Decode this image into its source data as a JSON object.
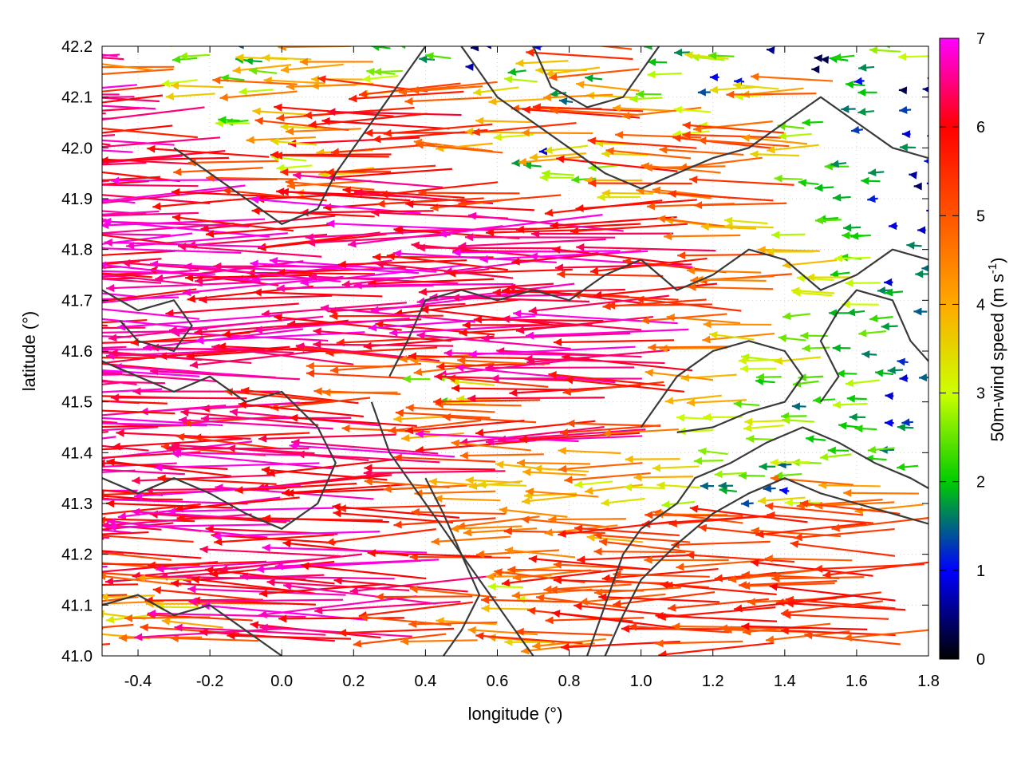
{
  "chart_data": {
    "type": "vector_field",
    "xlabel": "longitude (°)",
    "ylabel": "latitude (°)",
    "colorbar_label_main": "50m-wind speed (m s",
    "colorbar_label_sup": "-1",
    "colorbar_label_end": ")",
    "xlim": [
      -0.5,
      1.8
    ],
    "ylim": [
      41.0,
      42.2
    ],
    "x_ticks": [
      {
        "value": -0.4,
        "label": "-0.4"
      },
      {
        "value": -0.2,
        "label": "-0.2"
      },
      {
        "value": 0.0,
        "label": "0.0"
      },
      {
        "value": 0.2,
        "label": "0.2"
      },
      {
        "value": 0.4,
        "label": "0.4"
      },
      {
        "value": 0.6,
        "label": "0.6"
      },
      {
        "value": 0.8,
        "label": "0.8"
      },
      {
        "value": 1.0,
        "label": "1.0"
      },
      {
        "value": 1.2,
        "label": "1.2"
      },
      {
        "value": 1.4,
        "label": "1.4"
      },
      {
        "value": 1.6,
        "label": "1.6"
      },
      {
        "value": 1.8,
        "label": "1.8"
      }
    ],
    "y_ticks": [
      {
        "value": 41.0,
        "label": "41.0"
      },
      {
        "value": 41.1,
        "label": "41.1"
      },
      {
        "value": 41.2,
        "label": "41.2"
      },
      {
        "value": 41.3,
        "label": "41.3"
      },
      {
        "value": 41.4,
        "label": "41.4"
      },
      {
        "value": 41.5,
        "label": "41.5"
      },
      {
        "value": 41.6,
        "label": "41.6"
      },
      {
        "value": 41.7,
        "label": "41.7"
      },
      {
        "value": 41.8,
        "label": "41.8"
      },
      {
        "value": 41.9,
        "label": "41.9"
      },
      {
        "value": 42.0,
        "label": "42.0"
      },
      {
        "value": 42.1,
        "label": "42.1"
      },
      {
        "value": 42.2,
        "label": "42.2"
      }
    ],
    "colorbar": {
      "range": [
        0,
        7
      ],
      "ticks": [
        {
          "value": 0,
          "label": "0"
        },
        {
          "value": 1,
          "label": "1"
        },
        {
          "value": 2,
          "label": "2"
        },
        {
          "value": 3,
          "label": "3"
        },
        {
          "value": 4,
          "label": "4"
        },
        {
          "value": 5,
          "label": "5"
        },
        {
          "value": 6,
          "label": "6"
        },
        {
          "value": 7,
          "label": "7"
        }
      ],
      "stops": [
        {
          "value": 0,
          "color": "#000000"
        },
        {
          "value": 1,
          "color": "#0000ff"
        },
        {
          "value": 2,
          "color": "#00cc00"
        },
        {
          "value": 3,
          "color": "#ccff00"
        },
        {
          "value": 4,
          "color": "#ffaa00"
        },
        {
          "value": 5,
          "color": "#ff5500"
        },
        {
          "value": 6,
          "color": "#ff0000"
        },
        {
          "value": 7,
          "color": "#ff00ff"
        }
      ]
    },
    "contour_color": "#3a3a3a",
    "grid": true,
    "wind_field": {
      "description_note": "",
      "rows": [
        {
          "lat": 42.18,
          "speeds": [
            6.8,
            5.5,
            3.5,
            2.0,
            4.5,
            5.0,
            3.0,
            2.5,
            1.5,
            2.0,
            4.0,
            5.5,
            2.0,
            3.5,
            1.5,
            1.0,
            2.5,
            3.0
          ]
        },
        {
          "lat": 42.12,
          "speeds": [
            7.0,
            6.5,
            4.0,
            3.0,
            5.0,
            4.5,
            3.5,
            6.0,
            5.5,
            4.0,
            2.5,
            4.5,
            3.0,
            1.5,
            4.0,
            5.0,
            2.0,
            1.0
          ]
        },
        {
          "lat": 42.05,
          "speeds": [
            7.0,
            7.0,
            6.5,
            3.0,
            4.5,
            5.5,
            6.5,
            7.0,
            6.0,
            4.0,
            5.5,
            6.0,
            5.0,
            4.0,
            5.5,
            3.0,
            2.0,
            1.5
          ]
        },
        {
          "lat": 41.98,
          "speeds": [
            7.0,
            7.0,
            7.0,
            6.0,
            3.5,
            4.0,
            6.5,
            6.0,
            5.0,
            2.0,
            4.5,
            3.5,
            6.0,
            5.0,
            6.0,
            4.5,
            2.5,
            2.0
          ]
        },
        {
          "lat": 41.92,
          "speeds": [
            7.0,
            7.0,
            7.0,
            7.0,
            6.0,
            5.0,
            7.0,
            7.0,
            6.5,
            5.5,
            3.5,
            4.5,
            6.0,
            5.5,
            6.0,
            3.0,
            2.0,
            1.5
          ]
        },
        {
          "lat": 41.85,
          "speeds": [
            7.0,
            7.0,
            7.0,
            7.0,
            7.0,
            7.0,
            7.0,
            7.0,
            7.0,
            6.5,
            7.0,
            7.0,
            6.5,
            5.0,
            4.0,
            3.0,
            2.5,
            1.5
          ]
        },
        {
          "lat": 41.78,
          "speeds": [
            7.0,
            7.0,
            7.0,
            7.0,
            7.0,
            7.0,
            7.0,
            7.0,
            7.0,
            7.0,
            7.0,
            7.0,
            7.0,
            6.5,
            5.5,
            4.5,
            3.0,
            2.0
          ]
        },
        {
          "lat": 41.72,
          "speeds": [
            7.0,
            7.0,
            7.0,
            7.0,
            7.0,
            7.0,
            7.0,
            7.0,
            7.0,
            7.0,
            7.0,
            7.0,
            6.5,
            6.0,
            5.0,
            4.0,
            3.5,
            2.0
          ]
        },
        {
          "lat": 41.65,
          "speeds": [
            7.0,
            7.0,
            7.0,
            7.0,
            7.0,
            7.0,
            7.0,
            6.5,
            7.0,
            7.0,
            7.0,
            7.0,
            7.0,
            5.5,
            4.5,
            3.5,
            3.0,
            2.5
          ]
        },
        {
          "lat": 41.58,
          "speeds": [
            7.0,
            7.0,
            7.0,
            7.0,
            7.0,
            7.0,
            6.0,
            6.5,
            5.5,
            6.0,
            7.0,
            7.0,
            6.5,
            5.0,
            4.0,
            3.5,
            2.5,
            2.0
          ]
        },
        {
          "lat": 41.52,
          "speeds": [
            7.0,
            7.0,
            7.0,
            7.0,
            7.0,
            6.0,
            5.5,
            3.0,
            4.0,
            5.5,
            7.0,
            7.0,
            6.0,
            4.5,
            3.0,
            2.5,
            3.0,
            2.0
          ]
        },
        {
          "lat": 41.45,
          "speeds": [
            7.0,
            7.0,
            7.0,
            7.0,
            6.5,
            7.0,
            7.0,
            5.0,
            5.5,
            6.0,
            7.0,
            7.0,
            5.5,
            4.0,
            3.5,
            3.0,
            2.5,
            2.0
          ]
        },
        {
          "lat": 41.38,
          "speeds": [
            7.0,
            7.0,
            7.0,
            6.5,
            7.0,
            7.0,
            7.0,
            7.0,
            6.5,
            5.0,
            4.5,
            5.0,
            4.0,
            3.0,
            2.5,
            3.5,
            3.0,
            2.5
          ]
        },
        {
          "lat": 41.32,
          "speeds": [
            7.0,
            7.0,
            6.5,
            7.0,
            7.0,
            7.0,
            7.0,
            6.0,
            5.0,
            4.0,
            4.5,
            4.0,
            3.5,
            2.5,
            2.0,
            4.0,
            5.0,
            5.5
          ]
        },
        {
          "lat": 41.25,
          "speeds": [
            7.0,
            6.5,
            6.0,
            7.0,
            7.0,
            7.0,
            7.0,
            6.5,
            5.5,
            5.0,
            5.5,
            5.0,
            6.0,
            5.5,
            6.0,
            6.0,
            6.0,
            6.0
          ]
        },
        {
          "lat": 41.18,
          "speeds": [
            7.0,
            6.0,
            6.5,
            6.5,
            7.0,
            7.0,
            7.0,
            7.0,
            6.5,
            5.0,
            5.5,
            6.0,
            6.0,
            6.0,
            6.0,
            6.0,
            6.0,
            6.0
          ]
        },
        {
          "lat": 41.12,
          "speeds": [
            6.0,
            5.0,
            4.5,
            6.0,
            7.0,
            7.0,
            7.0,
            7.0,
            6.0,
            4.0,
            5.5,
            6.0,
            6.0,
            6.0,
            6.0,
            6.0,
            6.0,
            6.0
          ]
        },
        {
          "lat": 41.05,
          "speeds": [
            5.5,
            4.0,
            5.0,
            5.5,
            7.0,
            7.0,
            7.0,
            6.0,
            5.0,
            4.5,
            5.5,
            6.0,
            6.0,
            6.0,
            6.0,
            6.0,
            6.0,
            6.0
          ]
        }
      ],
      "longitudes": [
        -0.45,
        -0.32,
        -0.19,
        -0.06,
        0.07,
        0.2,
        0.33,
        0.46,
        0.59,
        0.72,
        0.85,
        0.98,
        1.11,
        1.24,
        1.37,
        1.5,
        1.63,
        1.76
      ]
    },
    "contours": [
      [
        [
          -0.5,
          41.58
        ],
        [
          -0.4,
          41.55
        ],
        [
          -0.3,
          41.52
        ],
        [
          -0.2,
          41.55
        ],
        [
          -0.1,
          41.5
        ],
        [
          0.0,
          41.52
        ],
        [
          0.1,
          41.45
        ],
        [
          0.15,
          41.38
        ],
        [
          0.1,
          41.3
        ],
        [
          0.0,
          41.25
        ],
        [
          -0.1,
          41.28
        ],
        [
          -0.2,
          41.32
        ],
        [
          -0.3,
          41.35
        ],
        [
          -0.4,
          41.32
        ],
        [
          -0.5,
          41.35
        ]
      ],
      [
        [
          -0.5,
          41.72
        ],
        [
          -0.4,
          41.68
        ],
        [
          -0.3,
          41.7
        ],
        [
          -0.25,
          41.65
        ],
        [
          -0.3,
          41.6
        ],
        [
          -0.4,
          41.62
        ],
        [
          -0.45,
          41.66
        ]
      ],
      [
        [
          0.3,
          41.55
        ],
        [
          0.35,
          41.62
        ],
        [
          0.4,
          41.7
        ],
        [
          0.5,
          41.72
        ],
        [
          0.6,
          41.7
        ],
        [
          0.7,
          41.72
        ],
        [
          0.8,
          41.7
        ],
        [
          0.9,
          41.75
        ],
        [
          1.0,
          41.78
        ],
        [
          1.1,
          41.72
        ],
        [
          1.2,
          41.75
        ],
        [
          1.3,
          41.8
        ],
        [
          1.4,
          41.78
        ],
        [
          1.5,
          41.72
        ],
        [
          1.6,
          41.75
        ],
        [
          1.7,
          41.8
        ],
        [
          1.8,
          41.78
        ]
      ],
      [
        [
          0.25,
          41.5
        ],
        [
          0.3,
          41.4
        ],
        [
          0.35,
          41.35
        ],
        [
          0.4,
          41.3
        ],
        [
          0.45,
          41.25
        ],
        [
          0.5,
          41.2
        ],
        [
          0.55,
          41.15
        ],
        [
          0.6,
          41.1
        ],
        [
          0.65,
          41.05
        ],
        [
          0.7,
          41.0
        ]
      ],
      [
        [
          0.85,
          41.0
        ],
        [
          0.9,
          41.1
        ],
        [
          0.95,
          41.2
        ],
        [
          1.0,
          41.25
        ],
        [
          1.1,
          41.3
        ],
        [
          1.15,
          41.35
        ],
        [
          1.25,
          41.38
        ],
        [
          1.35,
          41.42
        ],
        [
          1.45,
          41.45
        ],
        [
          1.55,
          41.42
        ],
        [
          1.65,
          41.38
        ],
        [
          1.75,
          41.35
        ],
        [
          1.8,
          41.33
        ]
      ],
      [
        [
          0.9,
          41.0
        ],
        [
          0.95,
          41.08
        ],
        [
          1.0,
          41.15
        ],
        [
          1.1,
          41.22
        ],
        [
          1.2,
          41.28
        ],
        [
          1.3,
          41.32
        ],
        [
          1.4,
          41.35
        ],
        [
          1.5,
          41.32
        ],
        [
          1.6,
          41.3
        ],
        [
          1.7,
          41.28
        ],
        [
          1.8,
          41.26
        ]
      ],
      [
        [
          1.5,
          41.5
        ],
        [
          1.55,
          41.55
        ],
        [
          1.5,
          41.62
        ],
        [
          1.55,
          41.68
        ],
        [
          1.6,
          41.72
        ],
        [
          1.7,
          41.7
        ],
        [
          1.75,
          41.62
        ],
        [
          1.8,
          41.58
        ]
      ],
      [
        [
          -0.3,
          42.0
        ],
        [
          -0.2,
          41.95
        ],
        [
          -0.1,
          41.9
        ],
        [
          0.0,
          41.85
        ],
        [
          0.1,
          41.88
        ],
        [
          0.15,
          41.95
        ],
        [
          0.2,
          42.0
        ],
        [
          0.25,
          42.05
        ],
        [
          0.3,
          42.1
        ],
        [
          0.35,
          42.15
        ],
        [
          0.4,
          42.2
        ]
      ],
      [
        [
          0.5,
          42.2
        ],
        [
          0.55,
          42.15
        ],
        [
          0.6,
          42.1
        ],
        [
          0.7,
          42.05
        ],
        [
          0.8,
          42.0
        ],
        [
          0.9,
          41.95
        ],
        [
          1.0,
          41.92
        ],
        [
          1.1,
          41.95
        ],
        [
          1.2,
          41.98
        ],
        [
          1.3,
          42.0
        ],
        [
          1.4,
          42.05
        ],
        [
          1.5,
          42.1
        ],
        [
          1.6,
          42.05
        ],
        [
          1.7,
          42.0
        ],
        [
          1.8,
          41.98
        ]
      ],
      [
        [
          0.7,
          42.2
        ],
        [
          0.75,
          42.12
        ],
        [
          0.85,
          42.08
        ],
        [
          0.95,
          42.1
        ],
        [
          1.0,
          42.15
        ],
        [
          1.05,
          42.2
        ]
      ],
      [
        [
          -0.5,
          41.1
        ],
        [
          -0.4,
          41.12
        ],
        [
          -0.3,
          41.08
        ],
        [
          -0.2,
          41.1
        ],
        [
          -0.1,
          41.05
        ],
        [
          0.0,
          41.0
        ]
      ],
      [
        [
          0.45,
          41.0
        ],
        [
          0.5,
          41.05
        ],
        [
          0.55,
          41.12
        ],
        [
          0.5,
          41.2
        ],
        [
          0.45,
          41.28
        ],
        [
          0.4,
          41.35
        ]
      ],
      [
        [
          1.0,
          41.45
        ],
        [
          1.05,
          41.5
        ],
        [
          1.1,
          41.55
        ],
        [
          1.2,
          41.6
        ],
        [
          1.3,
          41.62
        ],
        [
          1.4,
          41.6
        ],
        [
          1.45,
          41.55
        ],
        [
          1.4,
          41.5
        ],
        [
          1.3,
          41.48
        ],
        [
          1.2,
          41.45
        ],
        [
          1.1,
          41.44
        ]
      ]
    ]
  }
}
